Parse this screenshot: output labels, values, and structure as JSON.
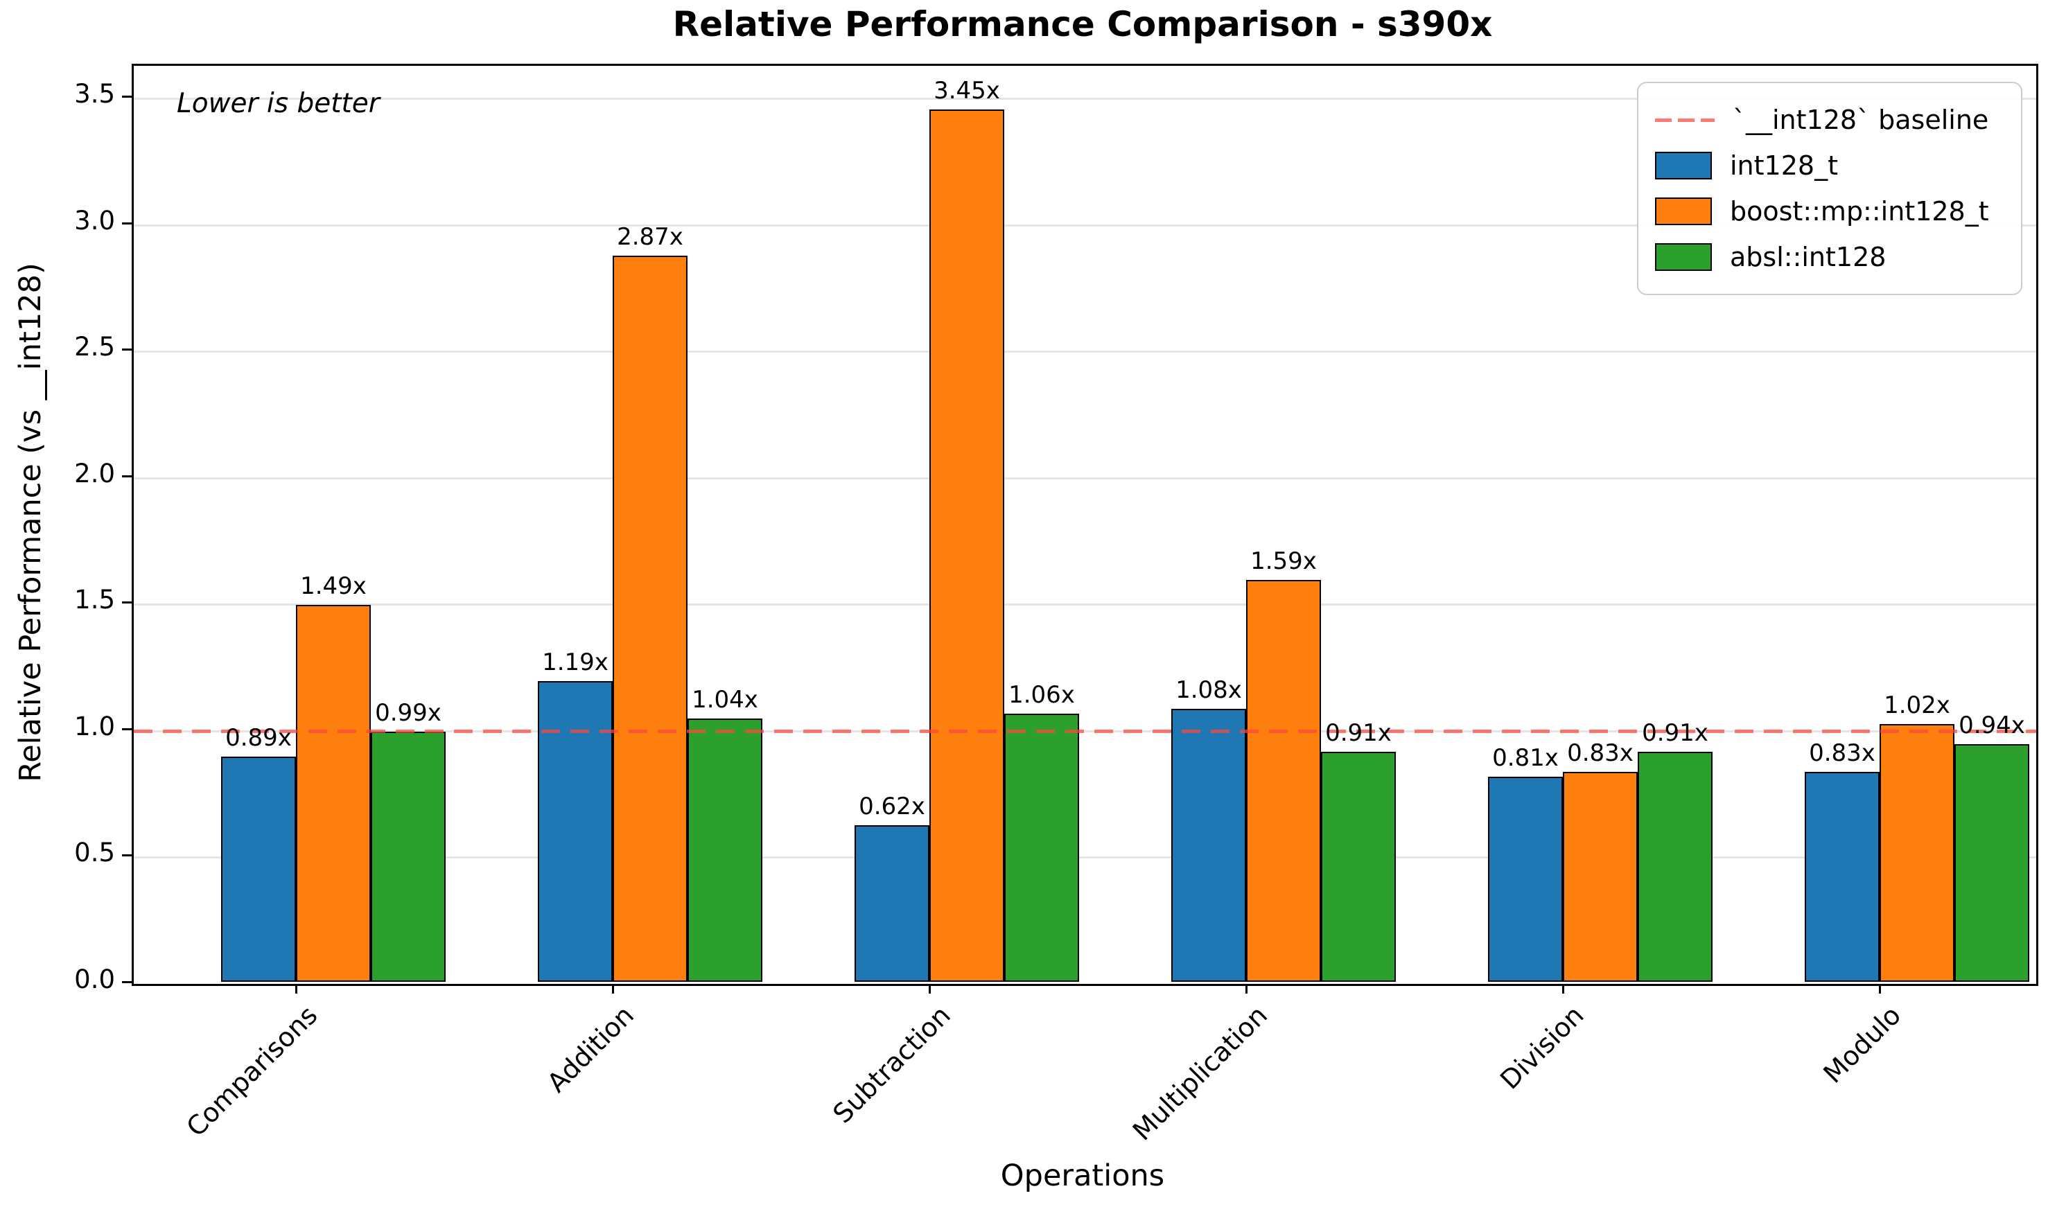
{
  "chart_data": {
    "type": "bar",
    "title": "Relative Performance Comparison - s390x",
    "xlabel": "Operations",
    "ylabel": "Relative Performance (vs __int128)",
    "annotation": "Lower is better",
    "categories": [
      "Comparisons",
      "Addition",
      "Subtraction",
      "Multiplication",
      "Division",
      "Modulo"
    ],
    "series": [
      {
        "name": "int128_t",
        "color": "#1f77b4",
        "values": [
          0.89,
          1.19,
          0.62,
          1.08,
          0.81,
          0.83
        ],
        "labels": [
          "0.89x",
          "1.19x",
          "0.62x",
          "1.08x",
          "0.81x",
          "0.83x"
        ]
      },
      {
        "name": "boost::mp::int128_t",
        "color": "#ff7f0e",
        "values": [
          1.49,
          2.87,
          3.45,
          1.59,
          0.83,
          1.02
        ],
        "labels": [
          "1.49x",
          "2.87x",
          "3.45x",
          "1.59x",
          "0.83x",
          "1.02x"
        ]
      },
      {
        "name": "absl::int128",
        "color": "#2ca02c",
        "values": [
          0.99,
          1.04,
          1.06,
          0.91,
          0.91,
          0.94
        ],
        "labels": [
          "0.99x",
          "1.04x",
          "1.06x",
          "0.91x",
          "0.91x",
          "0.94x"
        ]
      }
    ],
    "baseline": {
      "value": 1.0,
      "label": "`__int128` baseline",
      "color_rgba": "rgba(255,70,62,0.72)"
    },
    "yticks": [
      "0.0",
      "0.5",
      "1.0",
      "1.5",
      "2.0",
      "2.5",
      "3.0",
      "3.5"
    ],
    "ylim": [
      0,
      3.63
    ],
    "grid": true,
    "grid_color": "#e5e5e5",
    "legend_position": "upper right",
    "bar_edge_color": "#000000"
  }
}
